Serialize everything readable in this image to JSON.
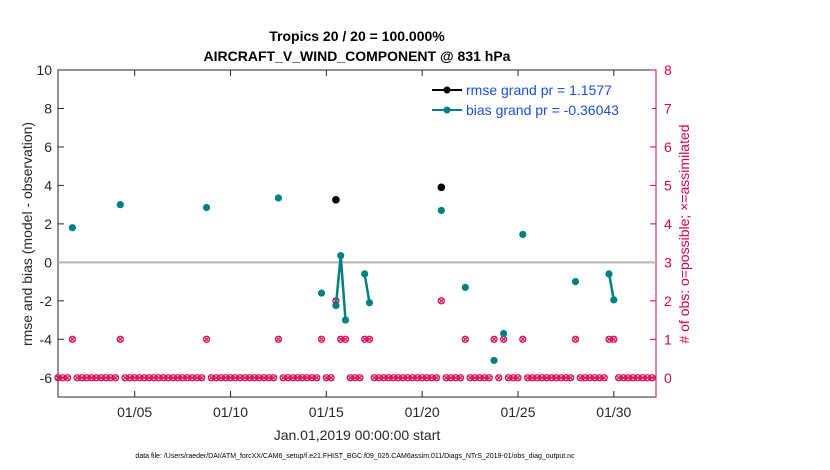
{
  "chart_data": {
    "type": "line",
    "title_line1": "Tropics 20 / 20 = 100.000%",
    "title_line2": "AIRCRAFT_V_WIND_COMPONENT @ 831 hPa",
    "ylabel": "rmse and bias (model - observation)",
    "ylabel_right": "# of obs: o=possible; ×=assimilated",
    "xlabel": "Jan.01,2019 00:00:00 start",
    "footnote": "data file: /Users/raeder/DAI/ATM_forcXX/CAM6_setup/f.e21.FHIST_BGC.f09_025.CAM6assim.011/Diags_NTrS_2019-01/obs_diag_output.nc",
    "xlim": [
      1,
      32.2
    ],
    "ylim": [
      -7,
      10
    ],
    "ylim_right": [
      -0.5,
      8
    ],
    "yticks": [
      "10",
      "8",
      "6",
      "4",
      "2",
      "0",
      "-2",
      "-4",
      "-6"
    ],
    "yticks_right": [
      "8",
      "7",
      "6",
      "5",
      "4",
      "3",
      "2",
      "1",
      "0"
    ],
    "xticks": [
      {
        "x": 5,
        "label": "01/05"
      },
      {
        "x": 10,
        "label": "01/10"
      },
      {
        "x": 15,
        "label": "01/15"
      },
      {
        "x": 20,
        "label": "01/20"
      },
      {
        "x": 25,
        "label": "01/25"
      },
      {
        "x": 30,
        "label": "01/30"
      }
    ],
    "legend": [
      {
        "name": "rmse grand pr = 1.1577",
        "color": "#000000"
      },
      {
        "name": "bias grand pr = -0.36043",
        "color": "#008080"
      }
    ],
    "rmse": [
      {
        "x": 15.5,
        "y": 3.25
      },
      {
        "x": 21.0,
        "y": 3.9
      }
    ],
    "bias_segments": [
      [
        {
          "x": 1.75,
          "y": 1.8
        }
      ],
      [
        {
          "x": 4.25,
          "y": 3.0
        }
      ],
      [
        {
          "x": 8.75,
          "y": 2.85
        }
      ],
      [
        {
          "x": 12.5,
          "y": 3.35
        }
      ],
      [
        {
          "x": 14.75,
          "y": -1.6
        }
      ],
      [
        {
          "x": 15.5,
          "y": -2.25
        },
        {
          "x": 15.75,
          "y": 0.35
        },
        {
          "x": 16.0,
          "y": -3.0
        }
      ],
      [
        {
          "x": 17.0,
          "y": -0.6
        },
        {
          "x": 17.25,
          "y": -2.1
        }
      ],
      [
        {
          "x": 21.0,
          "y": 2.7
        }
      ],
      [
        {
          "x": 22.25,
          "y": -1.3
        }
      ],
      [
        {
          "x": 23.75,
          "y": -5.1
        }
      ],
      [
        {
          "x": 24.25,
          "y": -3.7
        }
      ],
      [
        {
          "x": 25.25,
          "y": 1.45
        }
      ],
      [
        {
          "x": 28.0,
          "y": -1.0
        }
      ],
      [
        {
          "x": 29.75,
          "y": -0.6
        },
        {
          "x": 30.0,
          "y": -1.95
        }
      ]
    ],
    "obs_possible_nonzero": [
      {
        "x": 1.75,
        "y": 1
      },
      {
        "x": 4.25,
        "y": 1
      },
      {
        "x": 8.75,
        "y": 1
      },
      {
        "x": 12.5,
        "y": 1
      },
      {
        "x": 14.75,
        "y": 1
      },
      {
        "x": 15.5,
        "y": 2
      },
      {
        "x": 15.75,
        "y": 1
      },
      {
        "x": 16.0,
        "y": 1
      },
      {
        "x": 17.0,
        "y": 1
      },
      {
        "x": 17.25,
        "y": 1
      },
      {
        "x": 21.0,
        "y": 2
      },
      {
        "x": 22.25,
        "y": 1
      },
      {
        "x": 23.75,
        "y": 1
      },
      {
        "x": 24.25,
        "y": 1
      },
      {
        "x": 25.25,
        "y": 1
      },
      {
        "x": 28.0,
        "y": 1
      },
      {
        "x": 29.75,
        "y": 1
      },
      {
        "x": 30.0,
        "y": 1
      }
    ],
    "obs_start": 1.0,
    "obs_step": 0.25,
    "obs_end": 32.0
  }
}
